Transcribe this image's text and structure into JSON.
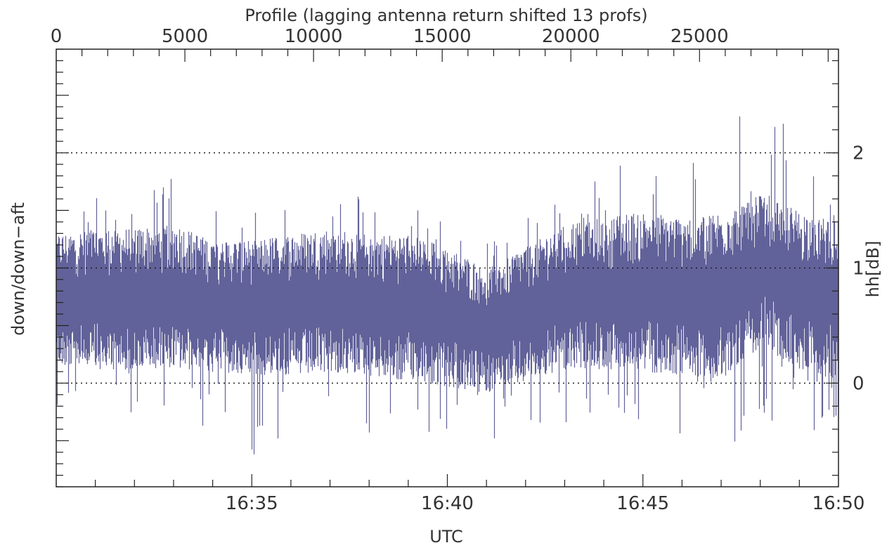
{
  "chart_data": {
    "type": "area",
    "title": "",
    "top_axis": {
      "label": "Profile (lagging antenna return shifted 13 profs)",
      "range": [
        0,
        30400
      ],
      "ticks": [
        0,
        5000,
        10000,
        15000,
        20000,
        25000
      ],
      "tick_labels": [
        "0",
        "5000",
        "10000",
        "15000",
        "20000",
        "25000"
      ]
    },
    "x_axis": {
      "label": "UTC",
      "range": [
        "16:30",
        "16:50"
      ],
      "ticks": [
        "16:35",
        "16:40",
        "16:45",
        "16:50"
      ]
    },
    "y_left": {
      "label": "down/down−aft"
    },
    "y_right": {
      "label": "hh[dB]",
      "range": [
        -0.9,
        2.9
      ],
      "ticks": [
        0,
        1,
        2
      ],
      "tick_labels": [
        "0",
        "1",
        "2"
      ]
    },
    "grid": "dotted horizontal lines at 0, 1, 2",
    "series": [
      {
        "color": "#62629A",
        "description_envelope": {
          "note": "dense noisy signal; approximate per-minute band",
          "minutes": [
            "16:30",
            "16:31",
            "16:32",
            "16:33",
            "16:34",
            "16:35",
            "16:36",
            "16:37",
            "16:38",
            "16:39",
            "16:40",
            "16:41",
            "16:42",
            "16:43",
            "16:44",
            "16:45",
            "16:46",
            "16:47",
            "16:48",
            "16:49",
            "16:50"
          ],
          "typical_low": [
            0.15,
            0.1,
            0.1,
            0.12,
            0.08,
            0.05,
            0.05,
            0.08,
            0.05,
            0.0,
            -0.05,
            -0.1,
            0.0,
            0.1,
            0.1,
            0.08,
            0.05,
            0.0,
            0.3,
            0.1,
            0.0
          ],
          "typical_high": [
            1.3,
            1.35,
            1.35,
            1.4,
            1.25,
            1.25,
            1.3,
            1.35,
            1.3,
            1.3,
            1.2,
            1.0,
            1.2,
            1.4,
            1.45,
            1.5,
            1.45,
            1.5,
            1.7,
            1.5,
            1.45
          ],
          "peak_high": [
            1.6,
            1.65,
            1.6,
            1.9,
            1.55,
            1.6,
            1.55,
            1.7,
            1.6,
            1.55,
            1.45,
            1.25,
            1.5,
            1.65,
            1.8,
            2.05,
            1.85,
            2.1,
            2.8,
            1.95,
            1.7
          ],
          "peak_low": [
            -0.35,
            -0.3,
            -0.4,
            -0.35,
            -0.4,
            -0.65,
            -0.5,
            -0.4,
            -0.45,
            -0.5,
            -0.55,
            -0.5,
            -0.45,
            -0.4,
            -0.5,
            -0.45,
            -0.6,
            -0.75,
            -0.4,
            -0.45,
            -0.4
          ]
        }
      }
    ]
  }
}
